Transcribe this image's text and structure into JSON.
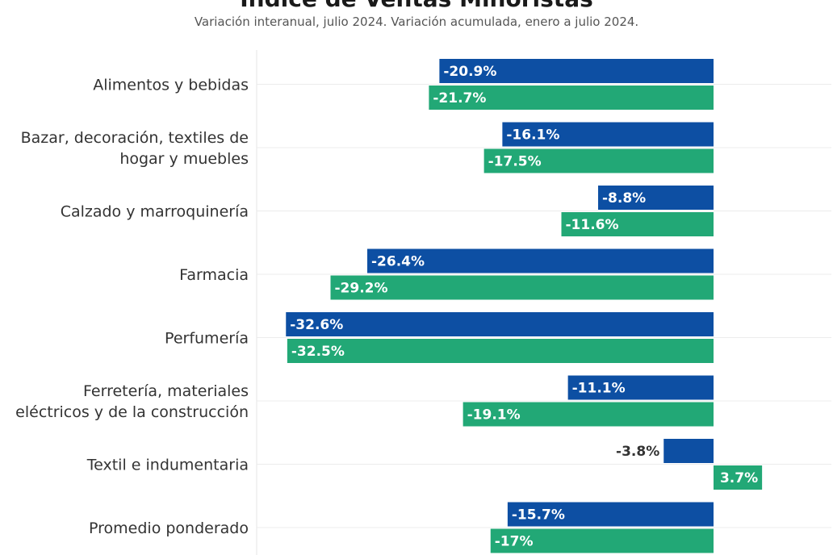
{
  "chart_data": {
    "type": "bar",
    "orientation": "horizontal",
    "title": "Índice de Ventas Minoristas",
    "subtitle": "Variación interanual, julio 2024. Variación acumulada, enero a julio 2024.",
    "categories": [
      [
        "Alimentos y bebidas"
      ],
      [
        "Bazar, decoración, textiles de",
        "hogar y muebles"
      ],
      [
        "Calzado y marroquinería"
      ],
      [
        "Farmacia"
      ],
      [
        "Perfumería"
      ],
      [
        "Ferretería, materiales",
        "eléctricos y de la construcción"
      ],
      [
        "Textil e indumentaria"
      ],
      [
        "Promedio ponderado"
      ]
    ],
    "series": [
      {
        "color": "#0d4fa3",
        "values": [
          -20.9,
          -16.1,
          -8.8,
          -26.4,
          -32.6,
          -11.1,
          -3.8,
          -15.7
        ],
        "labels": [
          "-20.9%",
          "-16.1%",
          "-8.8%",
          "-26.4%",
          "-32.6%",
          "-11.1%",
          "-3.8%",
          "-15.7%"
        ]
      },
      {
        "color": "#22a876",
        "values": [
          -21.7,
          -17.5,
          -11.6,
          -29.2,
          -32.5,
          -19.1,
          3.7,
          -17
        ],
        "labels": [
          "-21.7%",
          "-17.5%",
          "-11.6%",
          "-29.2%",
          "-32.5%",
          "-19.1%",
          "3.7%",
          "-17%"
        ]
      }
    ],
    "xlim": [
      -33,
      5
    ],
    "grid": true,
    "legend": "none"
  }
}
